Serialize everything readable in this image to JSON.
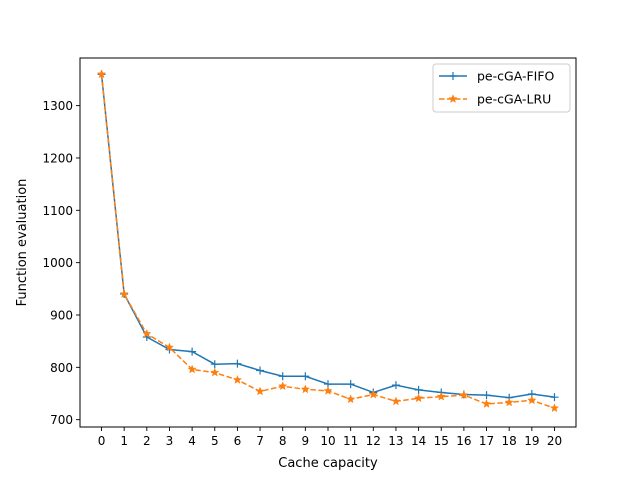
{
  "chart_data": {
    "type": "line",
    "title": "",
    "xlabel": "Cache capacity",
    "ylabel": "Function evaluation",
    "x": [
      0,
      1,
      2,
      3,
      4,
      5,
      6,
      7,
      8,
      9,
      10,
      11,
      12,
      13,
      14,
      15,
      16,
      17,
      18,
      19,
      20
    ],
    "xlim": [
      -0.95,
      20.95
    ],
    "ylim": [
      686,
      1391
    ],
    "yticks": [
      700,
      800,
      900,
      1000,
      1100,
      1200,
      1300
    ],
    "grid": false,
    "legend_position": "top-right",
    "series": [
      {
        "name": "pe-cGA-FIFO",
        "color": "#1f77b4",
        "linestyle": "solid",
        "marker": "plus",
        "values": [
          1360,
          940,
          858,
          834,
          830,
          806,
          807,
          794,
          783,
          783,
          768,
          768,
          752,
          766,
          757,
          752,
          748,
          747,
          742,
          749,
          743
        ]
      },
      {
        "name": "pe-cGA-LRU",
        "color": "#ff7f0e",
        "linestyle": "dashed",
        "marker": "star",
        "values": [
          1360,
          940,
          864,
          838,
          796,
          790,
          776,
          754,
          764,
          758,
          755,
          739,
          748,
          735,
          741,
          744,
          747,
          730,
          733,
          737,
          722
        ]
      }
    ]
  }
}
